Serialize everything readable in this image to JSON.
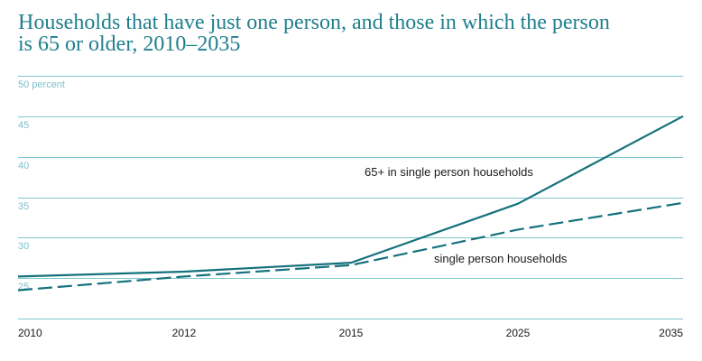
{
  "chart_data": {
    "type": "line",
    "title_lines": [
      "Households that have just one person, and those in which the person",
      "is 65 or older, 2010–2035"
    ],
    "title": "Households that have just one person, and those in which the person is 65 or older, 2010–2035",
    "xlabel": "",
    "ylabel": "",
    "categories": [
      "2010",
      "2012",
      "2015",
      "2025",
      "2035"
    ],
    "ylim": [
      20,
      50
    ],
    "yticks": [
      25,
      30,
      35,
      40,
      45,
      50
    ],
    "ytick_labels": [
      "25",
      "30",
      "35",
      "40",
      "45",
      "50 percent"
    ],
    "grid": true,
    "legend": "inline labels",
    "series": [
      {
        "name": "65+ in single person households",
        "style": "solid",
        "values": [
          25.2,
          25.8,
          26.9,
          34.2,
          45.0
        ]
      },
      {
        "name": "single person households",
        "style": "dashed",
        "values": [
          23.5,
          25.2,
          26.6,
          31.0,
          34.3
        ]
      }
    ],
    "colors": {
      "title": "#1f7f8c",
      "grid": "#7fc7cd",
      "ytick": "#7fc0c8",
      "series": "#15717d",
      "text": "#1a1a1a"
    }
  }
}
